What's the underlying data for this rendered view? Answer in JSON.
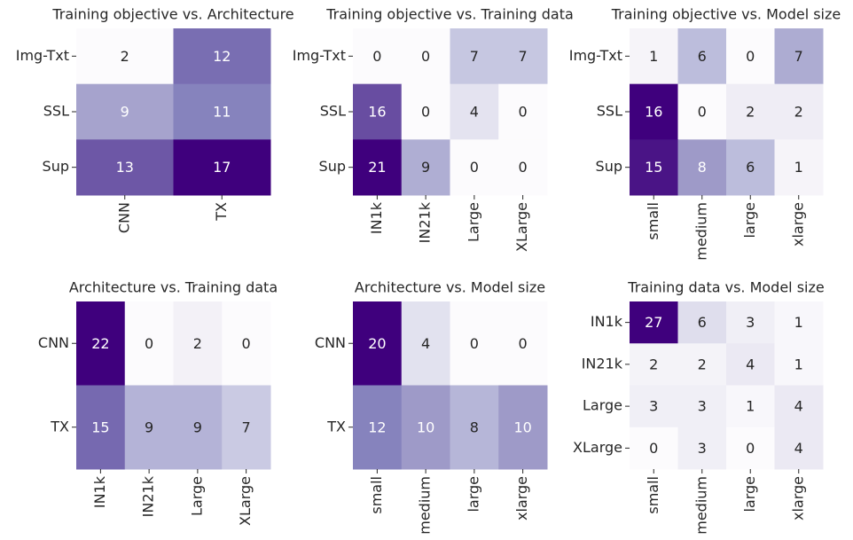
{
  "chart_data": [
    {
      "type": "heatmap",
      "title": "Training objective vs. Architecture",
      "rows": [
        "Img-Txt",
        "SSL",
        "Sup"
      ],
      "columns": [
        "CNN",
        "TX"
      ],
      "values": [
        [
          2,
          12
        ],
        [
          9,
          11
        ],
        [
          13,
          17
        ]
      ],
      "colormap": "Purples"
    },
    {
      "type": "heatmap",
      "title": "Training objective vs. Training data",
      "rows": [
        "Img-Txt",
        "SSL",
        "Sup"
      ],
      "columns": [
        "IN1k",
        "IN21k",
        "Large",
        "XLarge"
      ],
      "values": [
        [
          0,
          0,
          7,
          7
        ],
        [
          16,
          0,
          4,
          0
        ],
        [
          21,
          9,
          0,
          0
        ]
      ],
      "colormap": "Purples"
    },
    {
      "type": "heatmap",
      "title": "Training objective vs. Model size",
      "rows": [
        "Img-Txt",
        "SSL",
        "Sup"
      ],
      "columns": [
        "small",
        "medium",
        "large",
        "xlarge"
      ],
      "values": [
        [
          1,
          6,
          0,
          7
        ],
        [
          16,
          0,
          2,
          2
        ],
        [
          15,
          8,
          6,
          1
        ]
      ],
      "colormap": "Purples"
    },
    {
      "type": "heatmap",
      "title": "Architecture vs. Training data",
      "rows": [
        "CNN",
        "TX"
      ],
      "columns": [
        "IN1k",
        "IN21k",
        "Large",
        "XLarge"
      ],
      "values": [
        [
          22,
          0,
          2,
          0
        ],
        [
          15,
          9,
          9,
          7
        ]
      ],
      "colormap": "Purples"
    },
    {
      "type": "heatmap",
      "title": "Architecture vs. Model size",
      "rows": [
        "CNN",
        "TX"
      ],
      "columns": [
        "small",
        "medium",
        "large",
        "xlarge"
      ],
      "values": [
        [
          20,
          4,
          0,
          0
        ],
        [
          12,
          10,
          8,
          10
        ]
      ],
      "colormap": "Purples"
    },
    {
      "type": "heatmap",
      "title": "Training data vs. Model size",
      "rows": [
        "IN1k",
        "IN21k",
        "Large",
        "XLarge"
      ],
      "columns": [
        "small",
        "medium",
        "large",
        "xlarge"
      ],
      "values": [
        [
          27,
          6,
          3,
          1
        ],
        [
          2,
          2,
          4,
          1
        ],
        [
          3,
          3,
          1,
          4
        ],
        [
          0,
          3,
          0,
          4
        ]
      ],
      "colormap": "Purples"
    }
  ]
}
